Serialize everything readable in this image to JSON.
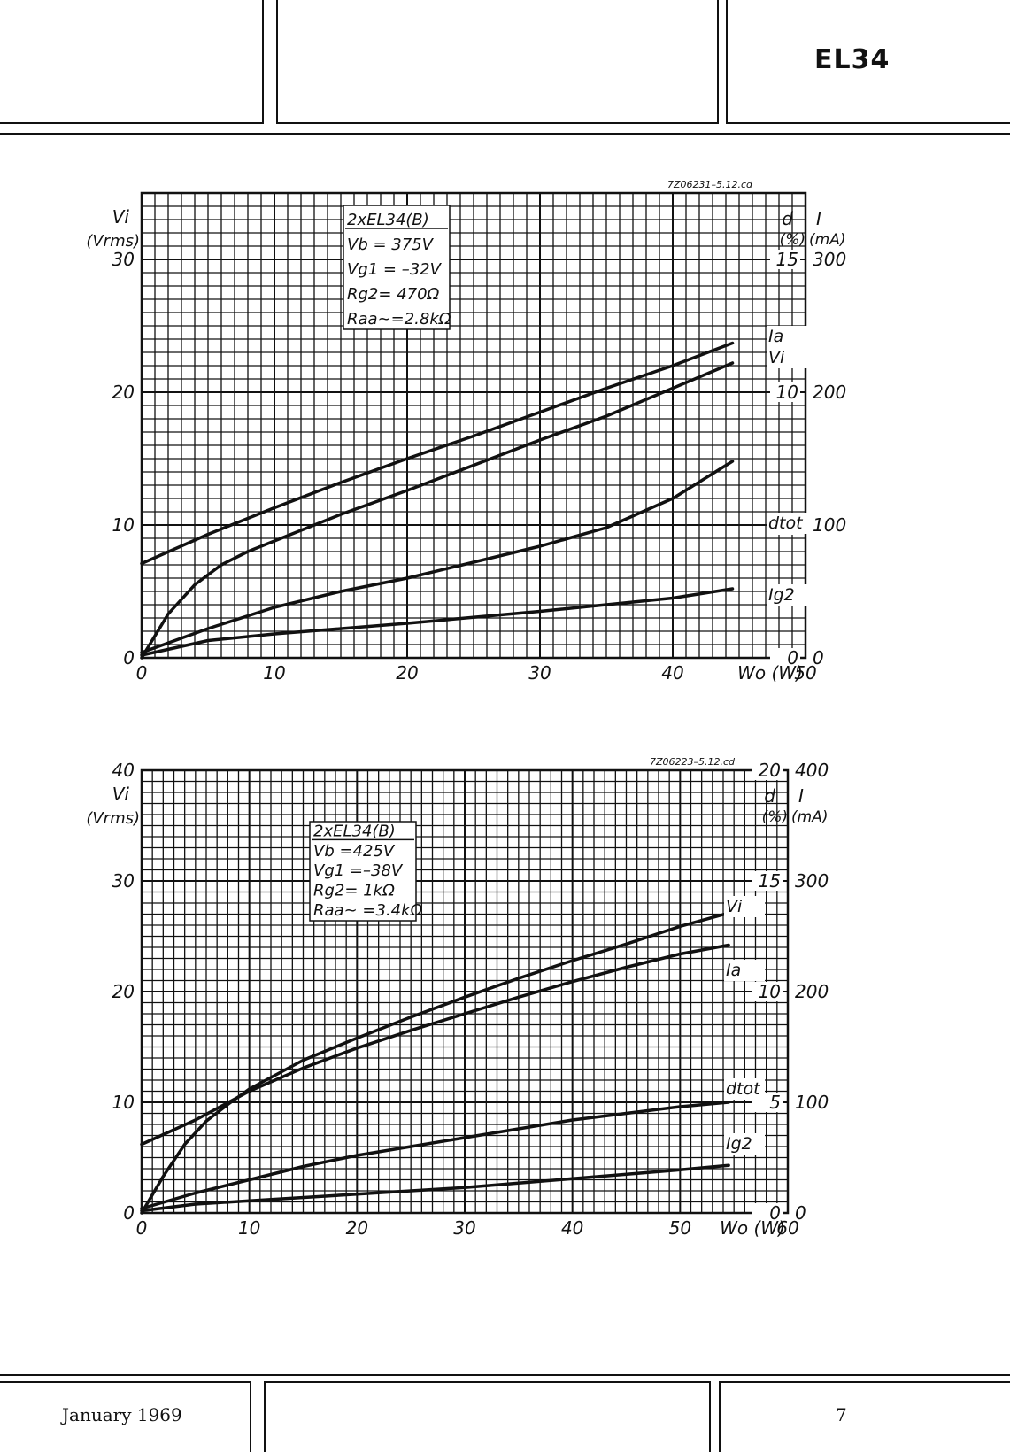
{
  "header": {
    "type_code": "EL34"
  },
  "footer": {
    "date": "January 1969",
    "page_number": "7"
  },
  "chart_data": [
    {
      "type": "line",
      "code": "7Z06231–5.12.cd",
      "conditions": [
        "2xEL34(B)",
        "Vb  = 375V",
        "Vg1  = –32V",
        "Rg2= 470Ω",
        "Raa~=2.8kΩ"
      ],
      "xlabel": "Wo (W)",
      "xlim": [
        0,
        50
      ],
      "xticks": [
        "0",
        "10",
        "20",
        "30",
        "40",
        "50"
      ],
      "left_axis": {
        "label_line1": "Vi",
        "label_line2": "(Vrms)",
        "ylim": [
          0,
          35
        ],
        "ticks": [
          "0",
          "10",
          "20",
          "30"
        ]
      },
      "right_axis_d": {
        "label_line1": "d",
        "label_line2": "(%)",
        "ylim": [
          0,
          17.5
        ],
        "ticks": [
          "0",
          "5",
          "10",
          "15"
        ]
      },
      "right_axis_i": {
        "label_line1": "I",
        "label_line2": "(mA)",
        "ylim": [
          0,
          350
        ],
        "ticks": [
          "0",
          "100",
          "200",
          "300"
        ]
      },
      "grid": true,
      "series": [
        {
          "name": "Ia",
          "axis": "I (mA)",
          "x": [
            0,
            5,
            10,
            15,
            20,
            25,
            30,
            35,
            40,
            44.5
          ],
          "y": [
            71,
            93,
            113,
            132,
            150,
            167,
            185,
            203,
            220,
            237
          ]
        },
        {
          "name": "Vi",
          "axis": "Vi (Vrms)",
          "x": [
            0,
            2,
            4,
            6,
            8,
            10,
            15,
            20,
            25,
            30,
            35,
            40,
            44.5
          ],
          "y": [
            0,
            3.3,
            5.5,
            7.0,
            8.0,
            8.8,
            10.8,
            12.6,
            14.5,
            16.4,
            18.2,
            20.3,
            22.2
          ]
        },
        {
          "name": "dtot",
          "axis": "d (%)",
          "x": [
            0,
            5,
            10,
            15,
            20,
            25,
            30,
            35,
            40,
            44.5
          ],
          "y": [
            0.2,
            1.1,
            1.9,
            2.5,
            3.0,
            3.6,
            4.2,
            4.9,
            6.0,
            7.4
          ]
        },
        {
          "name": "Ig2",
          "axis": "I (mA)",
          "x": [
            0,
            5,
            10,
            20,
            30,
            40,
            44.5
          ],
          "y": [
            2,
            13,
            18,
            26,
            35,
            45,
            52
          ]
        }
      ]
    },
    {
      "type": "line",
      "code": "7Z06223–5.12.cd",
      "conditions": [
        "2xEL34(B)",
        "Vb  =425V",
        "Vg1  =–38V",
        "Rg2= 1kΩ",
        "Raa~ =3.4kΩ"
      ],
      "xlabel": "Wo (W)",
      "xlim": [
        0,
        60
      ],
      "xticks": [
        "0",
        "10",
        "20",
        "30",
        "40",
        "50",
        "60"
      ],
      "left_axis": {
        "label_line1": "Vi",
        "label_line2": "(Vrms)",
        "ylim": [
          0,
          40
        ],
        "ticks": [
          "0",
          "10",
          "20",
          "30",
          "40"
        ]
      },
      "right_axis_d": {
        "label_line1": "d",
        "label_line2": "(%)",
        "ylim": [
          0,
          20
        ],
        "ticks": [
          "0",
          "5",
          "10",
          "15",
          "20"
        ]
      },
      "right_axis_i": {
        "label_line1": "I",
        "label_line2": "(mA)",
        "ylim": [
          0,
          400
        ],
        "ticks": [
          "0",
          "100",
          "200",
          "300",
          "400"
        ]
      },
      "grid": true,
      "series": [
        {
          "name": "Vi",
          "axis": "Vi (Vrms)",
          "x": [
            0,
            2,
            4,
            6,
            8,
            10,
            15,
            20,
            25,
            30,
            35,
            40,
            45,
            50,
            54.5
          ],
          "y": [
            0,
            3.3,
            6.2,
            8.3,
            9.8,
            11.2,
            13.8,
            15.8,
            17.7,
            19.5,
            21.2,
            22.8,
            24.3,
            25.9,
            27.1
          ]
        },
        {
          "name": "Ia",
          "axis": "I (mA)",
          "x": [
            0,
            5,
            10,
            15,
            20,
            25,
            30,
            35,
            40,
            45,
            50,
            54.5
          ],
          "y": [
            62,
            84,
            110,
            131,
            149,
            165,
            180,
            195,
            209,
            222,
            234,
            242
          ]
        },
        {
          "name": "dtot",
          "axis": "d (%)",
          "x": [
            0,
            5,
            10,
            15,
            20,
            25,
            30,
            35,
            40,
            45,
            50,
            54.5
          ],
          "y": [
            0.2,
            0.9,
            1.5,
            2.1,
            2.6,
            3.0,
            3.4,
            3.8,
            4.2,
            4.5,
            4.8,
            5.0
          ]
        },
        {
          "name": "Ig2",
          "axis": "I (mA)",
          "x": [
            0,
            5,
            10,
            20,
            30,
            40,
            50,
            54.5
          ],
          "y": [
            2,
            8,
            11,
            17,
            23,
            31,
            39,
            43
          ]
        }
      ]
    }
  ]
}
